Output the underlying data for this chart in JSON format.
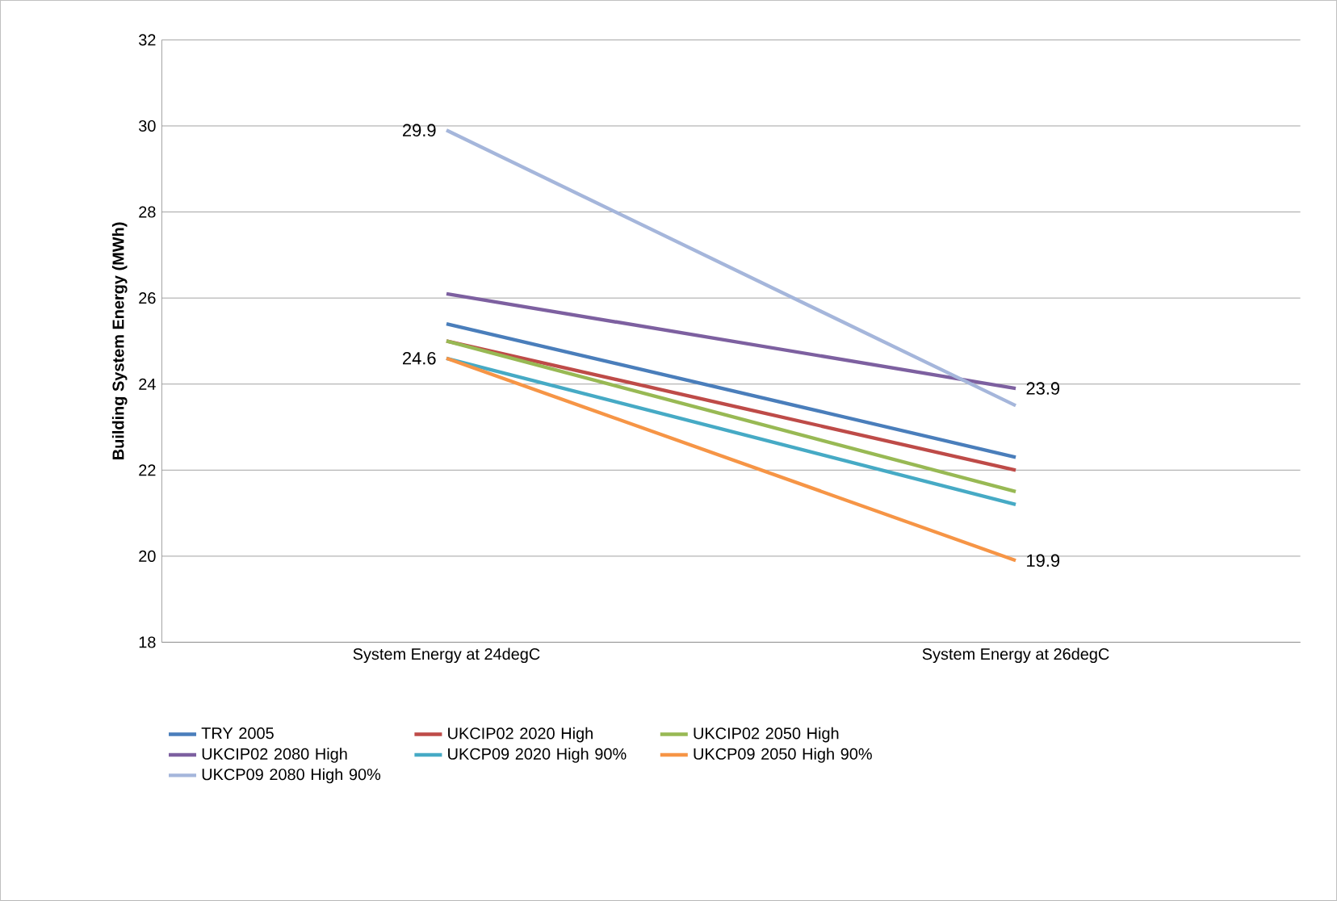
{
  "chart_data": {
    "type": "line",
    "ylabel": "Building System Energy (MWh)",
    "categories": [
      "System Energy at 24degC",
      "System Energy at 26degC"
    ],
    "series": [
      {
        "name": "TRY 2005",
        "color": "#4a7ebb",
        "values": [
          25.4,
          22.3
        ]
      },
      {
        "name": "UKCIP02 2020 High",
        "color": "#be4b48",
        "values": [
          25.0,
          22.0
        ]
      },
      {
        "name": "UKCIP02 2050 High",
        "color": "#98b954",
        "values": [
          25.0,
          21.5
        ]
      },
      {
        "name": "UKCIP02 2080 High",
        "color": "#7d60a0",
        "values": [
          26.1,
          23.9
        ],
        "value_labels": [
          null,
          "23.9"
        ]
      },
      {
        "name": "UKCP09 2020 High 90%",
        "color": "#46aac5",
        "values": [
          24.6,
          21.2
        ]
      },
      {
        "name": "UKCP09 2050 High 90%",
        "color": "#f69546",
        "values": [
          24.6,
          19.9
        ],
        "value_labels": [
          "24.6",
          "19.9"
        ]
      },
      {
        "name": "UKCP09 2080 High 90%",
        "color": "#a5b6db",
        "values": [
          29.9,
          23.5
        ],
        "value_labels": [
          "29.9",
          null
        ]
      }
    ],
    "ylim": [
      18,
      32
    ],
    "yticks": [
      18,
      20,
      22,
      24,
      26,
      28,
      30,
      32
    ],
    "grid": "y",
    "legend": "bottom",
    "marker": "none",
    "line_style": "solid"
  }
}
